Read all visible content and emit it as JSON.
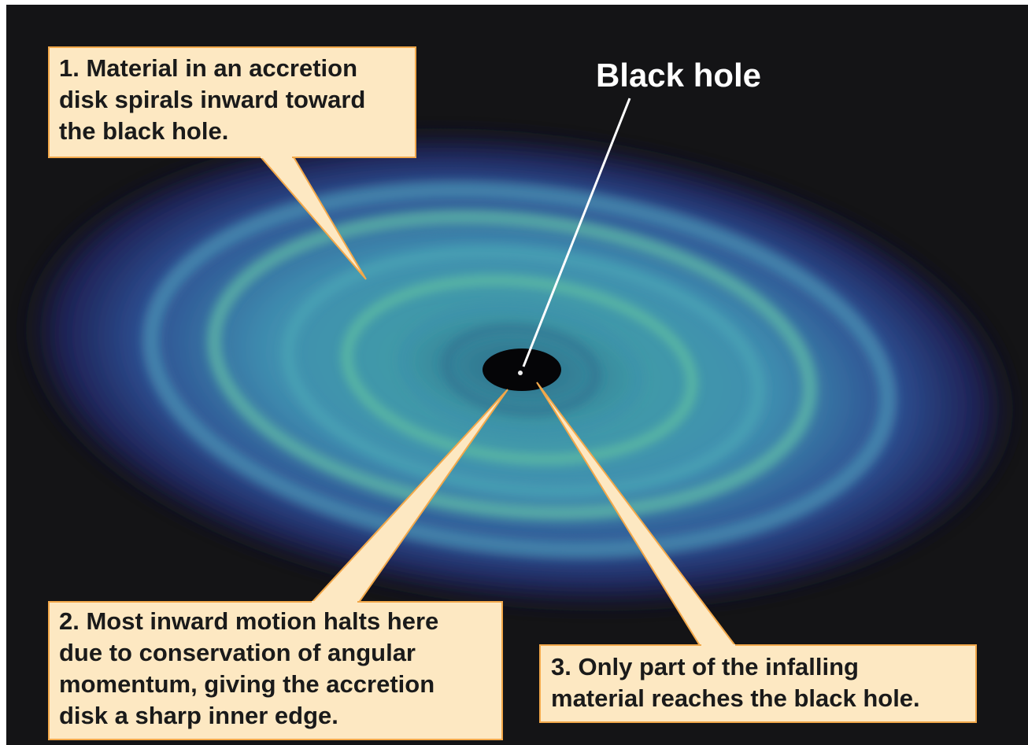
{
  "black_hole_label": "Black hole",
  "callouts": [
    {
      "lines": [
        "1. Material in an accretion",
        "disk spirals inward toward",
        "the black hole."
      ]
    },
    {
      "lines": [
        "2. Most inward motion halts here",
        "due to conservation of angular",
        "momentum, giving the accretion",
        "disk a sharp inner edge."
      ]
    },
    {
      "lines": [
        "3. Only part of the infalling",
        "material reaches the black hole."
      ]
    }
  ]
}
